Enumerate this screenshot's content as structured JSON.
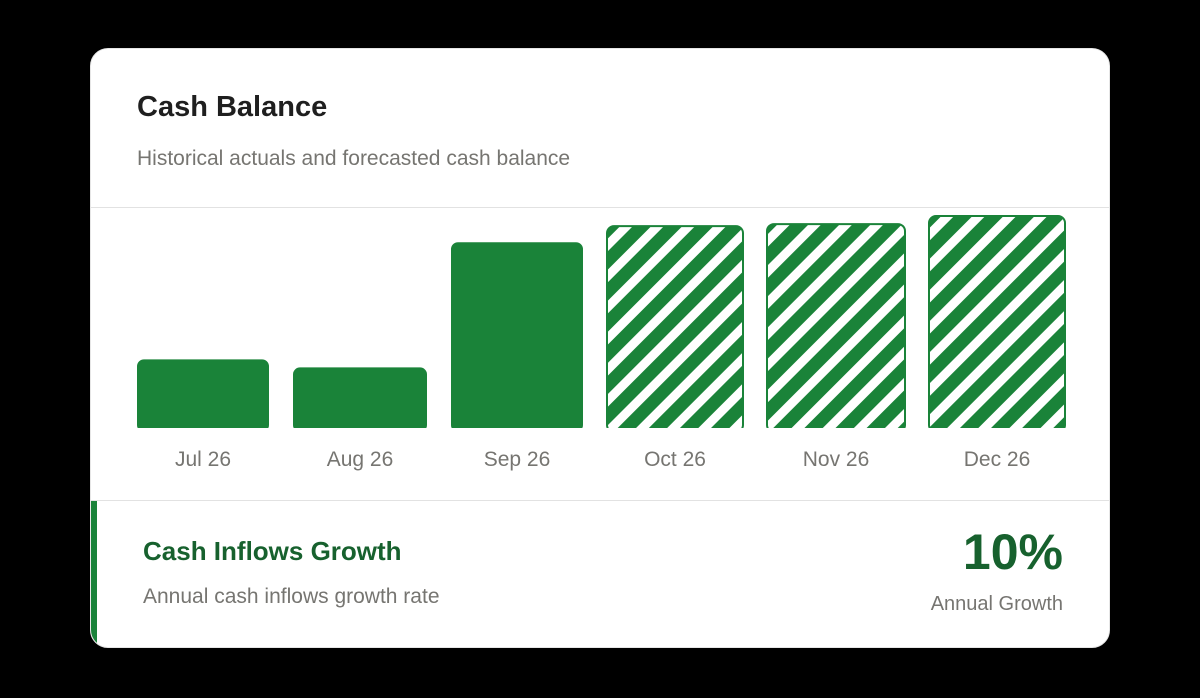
{
  "card": {
    "title": "Cash Balance",
    "subtitle": "Historical actuals and forecasted cash balance"
  },
  "chart_data": {
    "type": "bar",
    "categories": [
      "Jul 26",
      "Aug 26",
      "Sep 26",
      "Oct 26",
      "Nov 26",
      "Dec 26"
    ],
    "values": [
      34,
      30,
      92,
      100,
      101,
      105
    ],
    "kinds": [
      "actual",
      "actual",
      "actual",
      "forecast",
      "forecast",
      "forecast"
    ],
    "ylim": [
      0,
      105
    ],
    "grid": false,
    "colors": {
      "actual": "#1a8339",
      "forecast_stripe": "#1a8339",
      "forecast_gap": "#ffffff"
    }
  },
  "metric": {
    "title": "Cash Inflows Growth",
    "subtitle": "Annual cash inflows growth rate",
    "value": "10%",
    "label": "Annual Growth"
  },
  "colors": {
    "accent": "#1a8339",
    "accent_dark": "#17612e",
    "muted_text": "#767571",
    "background": "#000000"
  }
}
